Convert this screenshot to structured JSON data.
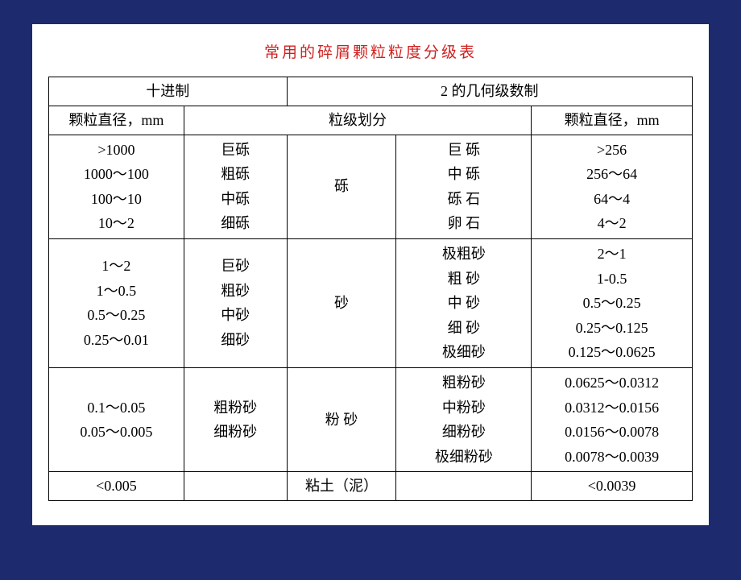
{
  "title": "常用的碎屑颗粒粒度分级表",
  "colors": {
    "page_bg": "#1e2a6e",
    "slide_bg": "#ffffff",
    "title_color": "#d02020",
    "border_color": "#000000",
    "text_color": "#000000"
  },
  "typography": {
    "title_fontsize": 19,
    "cell_fontsize": 18,
    "font_family": "SimSun"
  },
  "headers": {
    "decimal_system": "十进制",
    "geometric_system": "2 的几何级数制",
    "diameter_left": "颗粒直径，mm",
    "grain_division": "粒级划分",
    "diameter_right": "颗粒直径，mm"
  },
  "groups": [
    {
      "middle_label": "砾",
      "left_diameters": [
        ">1000",
        "1000～100",
        "100～10",
        "10～2"
      ],
      "left_names": [
        "巨砾",
        "粗砾",
        "中砾",
        "细砾"
      ],
      "right_names": [
        "巨 砾",
        "中 砾",
        "砾 石",
        "卵 石"
      ],
      "right_diameters": [
        ">256",
        "256～64",
        "64～4",
        "4～2"
      ]
    },
    {
      "middle_label": "砂",
      "left_diameters": [
        "1～2",
        "1～0.5",
        "0.5～0.25",
        "0.25～0.01"
      ],
      "left_names": [
        "巨砂",
        "粗砂",
        "中砂",
        "细砂"
      ],
      "right_names": [
        "极粗砂",
        "粗 砂",
        "中 砂",
        "细 砂",
        "极细砂"
      ],
      "right_diameters": [
        "2～1",
        "1-0.5",
        "0.5～0.25",
        "0.25～0.125",
        "0.125～0.0625"
      ]
    },
    {
      "middle_label": "粉 砂",
      "left_diameters": [
        "0.1～0.05",
        "0.05～0.005"
      ],
      "left_names": [
        "粗粉砂",
        "细粉砂"
      ],
      "right_names": [
        "粗粉砂",
        "中粉砂",
        "细粉砂",
        "极细粉砂"
      ],
      "right_diameters": [
        "0.0625～0.0312",
        "0.0312～0.0156",
        "0.0156～0.0078",
        "0.0078～0.0039"
      ]
    },
    {
      "middle_label": "粘土（泥）",
      "left_diameters": [
        "<0.005"
      ],
      "left_names": [
        ""
      ],
      "right_names": [
        ""
      ],
      "right_diameters": [
        "<0.0039"
      ]
    }
  ]
}
